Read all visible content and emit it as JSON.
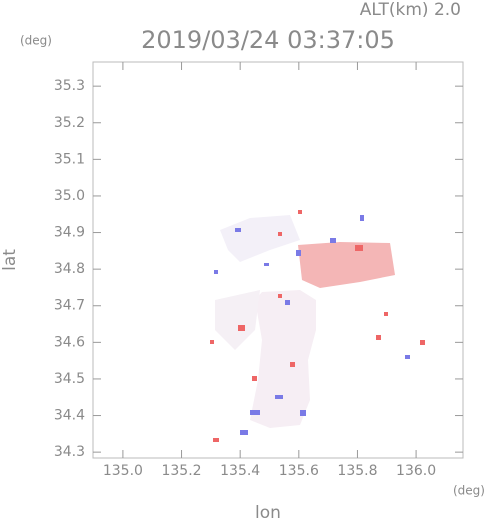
{
  "chart_data": {
    "type": "map",
    "title": "2019/03/24 03:37:05",
    "annotation": "ALT(km) 2.0",
    "xlabel": "lon",
    "ylabel": "lat",
    "x_unit": "(deg)",
    "y_unit": "(deg)",
    "xlim": [
      134.898,
      136.16
    ],
    "ylim": [
      34.284,
      35.366
    ],
    "xticks": [
      {
        "value": 135.0,
        "label": "135.0"
      },
      {
        "value": 135.2,
        "label": "135.2"
      },
      {
        "value": 135.4,
        "label": "135.4"
      },
      {
        "value": 135.6,
        "label": "135.6"
      },
      {
        "value": 135.8,
        "label": "135.8"
      },
      {
        "value": 136.0,
        "label": "136.0"
      }
    ],
    "yticks": [
      34.3,
      34.4,
      34.5,
      34.6,
      34.7,
      34.8,
      34.9,
      {
        "value": 35.0,
        "label": "35.0"
      },
      35.1,
      35.2,
      35.3
    ]
  }
}
